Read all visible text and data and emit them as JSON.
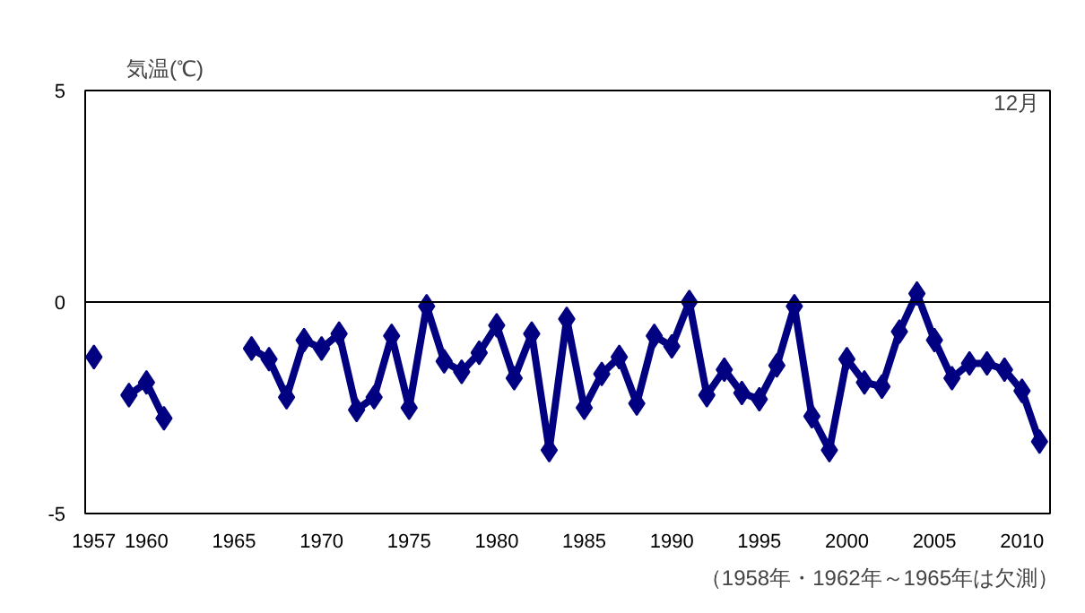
{
  "chart_data": {
    "type": "line",
    "ylabel": "気温(℃)",
    "annotations": [
      "12月",
      "（1958年・1962年～1965年は欠測）"
    ],
    "x": [
      1957,
      1958,
      1959,
      1960,
      1961,
      1962,
      1963,
      1964,
      1965,
      1966,
      1967,
      1968,
      1969,
      1970,
      1971,
      1972,
      1973,
      1974,
      1975,
      1976,
      1977,
      1978,
      1979,
      1980,
      1981,
      1982,
      1983,
      1984,
      1985,
      1986,
      1987,
      1988,
      1989,
      1990,
      1991,
      1992,
      1993,
      1994,
      1995,
      1996,
      1997,
      1998,
      1999,
      2000,
      2001,
      2002,
      2003,
      2004,
      2005,
      2006,
      2007,
      2008,
      2009,
      2010,
      2011
    ],
    "series": [
      {
        "color": "#000080",
        "values": [
          -1.3,
          null,
          -2.2,
          -1.9,
          -2.75,
          null,
          null,
          null,
          null,
          -1.1,
          -1.35,
          -2.25,
          -0.9,
          -1.1,
          -0.75,
          -2.55,
          -2.25,
          -0.8,
          -2.5,
          -0.1,
          -1.4,
          -1.65,
          -1.2,
          -0.55,
          -1.8,
          -0.75,
          -3.5,
          -0.4,
          -2.5,
          -1.7,
          -1.3,
          -2.4,
          -0.8,
          -1.05,
          0.0,
          -2.2,
          -1.6,
          -2.15,
          -2.3,
          -1.5,
          -0.1,
          -2.7,
          -3.5,
          -1.35,
          -1.9,
          -2.0,
          -0.7,
          0.2,
          -0.9,
          -1.8,
          -1.45,
          -1.45,
          -1.6,
          -2.1,
          -3.3
        ]
      }
    ],
    "xlim": [
      1956.5,
      2011.6
    ],
    "ylim": [
      -5,
      5
    ],
    "xticks": [
      1957,
      1960,
      1965,
      1970,
      1975,
      1980,
      1985,
      1990,
      1995,
      2000,
      2005,
      2010
    ],
    "yticks": [
      -5,
      0,
      5
    ],
    "ref_lines": [
      {
        "axis": "y",
        "value": 0,
        "color": "#000000"
      }
    ],
    "marker": "diamond",
    "line_style": "solid",
    "grid": false
  }
}
